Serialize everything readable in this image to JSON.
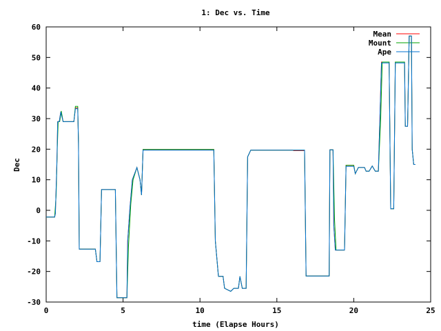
{
  "chart_data": {
    "type": "line",
    "title": "1: Dec vs. Time",
    "xlabel": "time (Elapse Hours)",
    "ylabel": "Dec",
    "xlim": [
      0,
      25
    ],
    "ylim": [
      -30,
      60
    ],
    "xticks": [
      0,
      5,
      10,
      15,
      20,
      25
    ],
    "yticks": [
      -30,
      -20,
      -10,
      0,
      10,
      20,
      30,
      40,
      50,
      60
    ],
    "grid": false,
    "legend_position": "top-right",
    "series": [
      {
        "name": "Mean",
        "color": "#ff0000",
        "points": [
          [
            0,
            -2.2
          ],
          [
            0.55,
            -2.2
          ],
          [
            0.6,
            -1
          ],
          [
            0.7,
            16
          ],
          [
            0.75,
            29
          ],
          [
            0.85,
            29
          ],
          [
            0.95,
            32.2
          ],
          [
            1.1,
            29
          ],
          [
            1.8,
            29
          ],
          [
            1.9,
            33.5
          ],
          [
            2.05,
            33.5
          ],
          [
            2.1,
            22
          ],
          [
            2.15,
            -12.7
          ],
          [
            3.2,
            -12.7
          ],
          [
            3.3,
            -16.8
          ],
          [
            3.5,
            -16.8
          ],
          [
            3.6,
            6.8
          ],
          [
            4.5,
            6.8
          ],
          [
            4.6,
            -28.6
          ],
          [
            5.25,
            -28.6
          ],
          [
            5.3,
            -10
          ],
          [
            5.45,
            1
          ],
          [
            5.6,
            10
          ],
          [
            5.9,
            14
          ],
          [
            6.1,
            10
          ],
          [
            6.2,
            5
          ],
          [
            6.3,
            19.9
          ],
          [
            9.3,
            19.9
          ],
          [
            10.5,
            19.9
          ],
          [
            10.9,
            19.9
          ],
          [
            11.0,
            -10
          ],
          [
            11.2,
            -21.6
          ],
          [
            11.5,
            -21.6
          ],
          [
            11.6,
            -25.5
          ],
          [
            12.0,
            -26.5
          ],
          [
            12.2,
            -25.5
          ],
          [
            12.5,
            -25.5
          ],
          [
            12.6,
            -21.6
          ],
          [
            12.75,
            -25.5
          ],
          [
            13.0,
            -25.5
          ],
          [
            13.1,
            17.5
          ],
          [
            13.3,
            19.7
          ],
          [
            16.0,
            19.7
          ],
          [
            16.1,
            19.5
          ],
          [
            16.8,
            19.5
          ],
          [
            16.9,
            -21.5
          ],
          [
            18.0,
            -21.5
          ],
          [
            18.4,
            -21.5
          ],
          [
            18.45,
            19.8
          ],
          [
            18.65,
            19.8
          ],
          [
            18.7,
            -5
          ],
          [
            18.8,
            -13
          ],
          [
            19.4,
            -13
          ],
          [
            19.5,
            14.7
          ],
          [
            20.0,
            14.7
          ],
          [
            20.1,
            12
          ],
          [
            20.3,
            14
          ],
          [
            20.7,
            14
          ],
          [
            20.8,
            12.8
          ],
          [
            21.0,
            12.8
          ],
          [
            21.2,
            14.5
          ],
          [
            21.4,
            12.8
          ],
          [
            21.6,
            12.8
          ],
          [
            21.8,
            48.5
          ],
          [
            22.3,
            48.5
          ],
          [
            22.4,
            0.5
          ],
          [
            22.6,
            0.5
          ],
          [
            22.7,
            48.5
          ],
          [
            23.3,
            48.5
          ],
          [
            23.35,
            27.5
          ],
          [
            23.5,
            27.5
          ],
          [
            23.6,
            57
          ],
          [
            23.75,
            57
          ],
          [
            23.8,
            20
          ],
          [
            23.9,
            15
          ],
          [
            24.0,
            15
          ]
        ]
      },
      {
        "name": "Mount",
        "color": "#00a000",
        "points": [
          [
            0,
            -2.2
          ],
          [
            0.55,
            -2.2
          ],
          [
            0.65,
            5
          ],
          [
            0.72,
            20
          ],
          [
            0.78,
            29
          ],
          [
            0.88,
            29
          ],
          [
            0.98,
            32.5
          ],
          [
            1.1,
            29
          ],
          [
            1.8,
            29
          ],
          [
            1.9,
            34
          ],
          [
            2.05,
            34
          ],
          [
            2.1,
            22
          ],
          [
            2.15,
            -12.7
          ],
          [
            3.2,
            -12.7
          ],
          [
            3.3,
            -16.8
          ],
          [
            3.5,
            -16.8
          ],
          [
            3.6,
            6.8
          ],
          [
            4.5,
            6.8
          ],
          [
            4.6,
            -28.6
          ],
          [
            5.25,
            -28.6
          ],
          [
            5.35,
            -12
          ],
          [
            5.5,
            2
          ],
          [
            5.65,
            10
          ],
          [
            5.9,
            14
          ],
          [
            6.1,
            10
          ],
          [
            6.2,
            5
          ],
          [
            6.3,
            19.9
          ],
          [
            9.3,
            19.9
          ],
          [
            10.5,
            19.9
          ],
          [
            10.9,
            19.9
          ],
          [
            11.0,
            -10
          ],
          [
            11.2,
            -21.6
          ],
          [
            11.5,
            -21.6
          ],
          [
            11.6,
            -25.5
          ],
          [
            12.0,
            -26.5
          ],
          [
            12.2,
            -25.5
          ],
          [
            12.5,
            -25.5
          ],
          [
            12.6,
            -21.6
          ],
          [
            12.75,
            -25.5
          ],
          [
            13.0,
            -25.5
          ],
          [
            13.1,
            17.5
          ],
          [
            13.3,
            19.7
          ],
          [
            16.0,
            19.7
          ],
          [
            16.1,
            19.7
          ],
          [
            16.8,
            19.7
          ],
          [
            16.9,
            -21.5
          ],
          [
            18.0,
            -21.5
          ],
          [
            18.4,
            -21.5
          ],
          [
            18.45,
            19.8
          ],
          [
            18.65,
            19.8
          ],
          [
            18.75,
            -3
          ],
          [
            18.85,
            -13
          ],
          [
            19.4,
            -13
          ],
          [
            19.5,
            14.7
          ],
          [
            20.0,
            14.7
          ],
          [
            20.1,
            12
          ],
          [
            20.3,
            14
          ],
          [
            20.7,
            14
          ],
          [
            20.8,
            12.8
          ],
          [
            21.0,
            12.8
          ],
          [
            21.2,
            14.5
          ],
          [
            21.4,
            12.8
          ],
          [
            21.6,
            12.8
          ],
          [
            21.75,
            30
          ],
          [
            21.85,
            48.5
          ],
          [
            22.3,
            48.5
          ],
          [
            22.4,
            0.5
          ],
          [
            22.6,
            0.5
          ],
          [
            22.7,
            48.5
          ],
          [
            23.3,
            48.5
          ],
          [
            23.35,
            27.5
          ],
          [
            23.5,
            27.5
          ],
          [
            23.6,
            57
          ],
          [
            23.75,
            57
          ],
          [
            23.8,
            20
          ],
          [
            23.9,
            15
          ],
          [
            24.0,
            15
          ]
        ]
      },
      {
        "name": "Ape",
        "color": "#0070d0",
        "points": [
          [
            0,
            -2.2
          ],
          [
            0.55,
            -2.2
          ],
          [
            0.6,
            -1
          ],
          [
            0.7,
            16
          ],
          [
            0.75,
            29
          ],
          [
            0.85,
            29
          ],
          [
            0.95,
            32.2
          ],
          [
            1.1,
            29
          ],
          [
            1.8,
            29
          ],
          [
            1.9,
            33.2
          ],
          [
            2.05,
            33.2
          ],
          [
            2.1,
            22
          ],
          [
            2.15,
            -12.7
          ],
          [
            3.2,
            -12.7
          ],
          [
            3.3,
            -16.8
          ],
          [
            3.5,
            -16.8
          ],
          [
            3.6,
            6.8
          ],
          [
            4.5,
            6.8
          ],
          [
            4.6,
            -28.6
          ],
          [
            5.25,
            -28.6
          ],
          [
            5.3,
            -10
          ],
          [
            5.45,
            1
          ],
          [
            5.6,
            10
          ],
          [
            5.9,
            14
          ],
          [
            6.1,
            10
          ],
          [
            6.2,
            5
          ],
          [
            6.3,
            19.7
          ],
          [
            9.3,
            19.7
          ],
          [
            10.5,
            19.7
          ],
          [
            10.9,
            19.7
          ],
          [
            11.0,
            -10
          ],
          [
            11.2,
            -21.6
          ],
          [
            11.5,
            -21.6
          ],
          [
            11.6,
            -25.5
          ],
          [
            12.0,
            -26.5
          ],
          [
            12.2,
            -25.5
          ],
          [
            12.5,
            -25.5
          ],
          [
            12.6,
            -21.6
          ],
          [
            12.75,
            -25.5
          ],
          [
            13.0,
            -25.5
          ],
          [
            13.1,
            17.5
          ],
          [
            13.3,
            19.7
          ],
          [
            16.0,
            19.7
          ],
          [
            16.1,
            19.7
          ],
          [
            16.8,
            19.7
          ],
          [
            16.9,
            -21.5
          ],
          [
            18.0,
            -21.5
          ],
          [
            18.4,
            -21.5
          ],
          [
            18.45,
            19.8
          ],
          [
            18.65,
            19.8
          ],
          [
            18.7,
            -5
          ],
          [
            18.8,
            -13
          ],
          [
            19.4,
            -13
          ],
          [
            19.5,
            14.4
          ],
          [
            20.0,
            14.4
          ],
          [
            20.1,
            12
          ],
          [
            20.3,
            14
          ],
          [
            20.7,
            14
          ],
          [
            20.8,
            12.8
          ],
          [
            21.0,
            12.8
          ],
          [
            21.2,
            14.5
          ],
          [
            21.4,
            12.8
          ],
          [
            21.6,
            12.8
          ],
          [
            21.8,
            48.2
          ],
          [
            22.3,
            48.2
          ],
          [
            22.4,
            0.5
          ],
          [
            22.6,
            0.5
          ],
          [
            22.7,
            48.2
          ],
          [
            23.3,
            48.2
          ],
          [
            23.35,
            27.5
          ],
          [
            23.5,
            27.5
          ],
          [
            23.6,
            57
          ],
          [
            23.75,
            57
          ],
          [
            23.8,
            20
          ],
          [
            23.9,
            15
          ],
          [
            24.0,
            15
          ]
        ]
      }
    ]
  }
}
